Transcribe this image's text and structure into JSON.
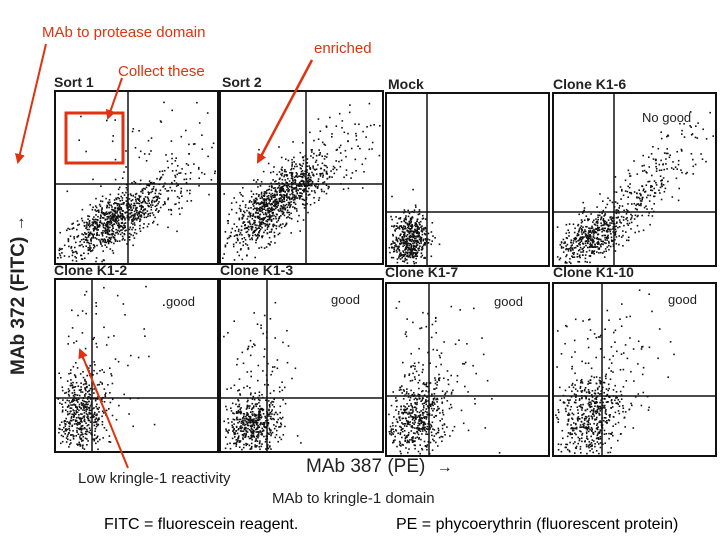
{
  "annotations": {
    "mab_protease": "MAb to protease domain",
    "enriched": "enriched",
    "collect_these": "Collect these",
    "no_good": "No good",
    "good": "good",
    "low_kringle": "Low kringle-1 reactivity",
    "mab_kringle": "MAb to kringle-1 domain"
  },
  "axes": {
    "y_label": "MAb 372 (FITC)",
    "x_label": "MAb 387 (PE)"
  },
  "panels": [
    {
      "title": "Sort 1"
    },
    {
      "title": "Sort 2"
    },
    {
      "title": "Mock"
    },
    {
      "title": "Clone K1-6"
    },
    {
      "title": "Clone K1-2"
    },
    {
      "title": "Clone K1-3"
    },
    {
      "title": "Clone K1-7"
    },
    {
      "title": "Clone K1-10"
    }
  ],
  "captions": {
    "fitc": "FITC = fluorescein reagent.",
    "pe": "PE = phycoerythrin (fluorescent protein)"
  },
  "colors": {
    "annotation_red": "#e0320e",
    "dots": "#111111"
  }
}
